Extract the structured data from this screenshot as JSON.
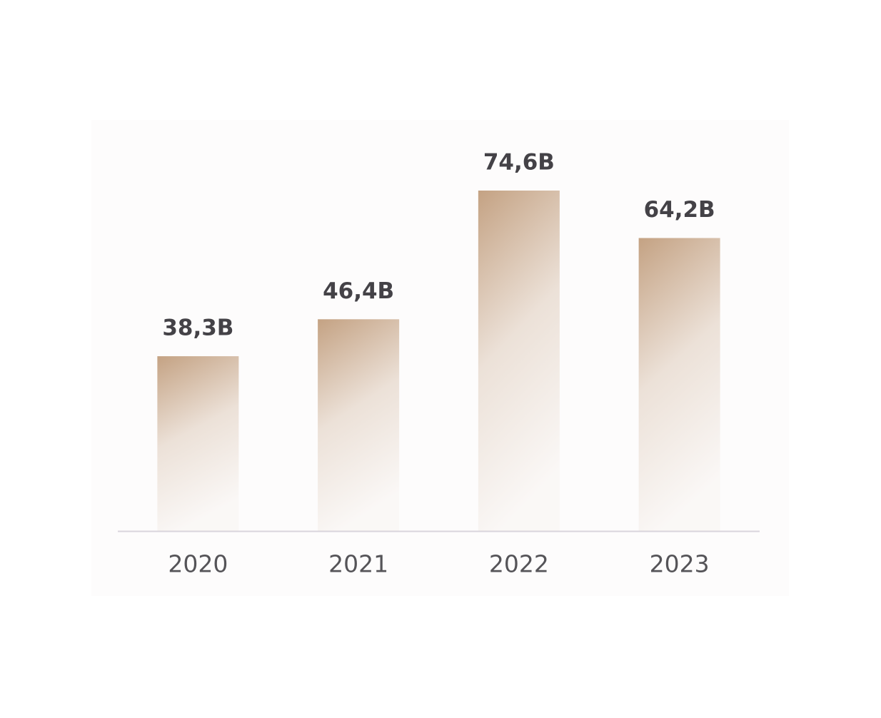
{
  "chart_data": {
    "type": "bar",
    "categories": [
      "2020",
      "2021",
      "2022",
      "2023"
    ],
    "values": [
      38.3,
      46.4,
      74.6,
      64.2
    ],
    "value_labels": [
      "38,3B",
      "46,4B",
      "74,6B",
      "64,2B"
    ],
    "color": "#c4a283"
  }
}
